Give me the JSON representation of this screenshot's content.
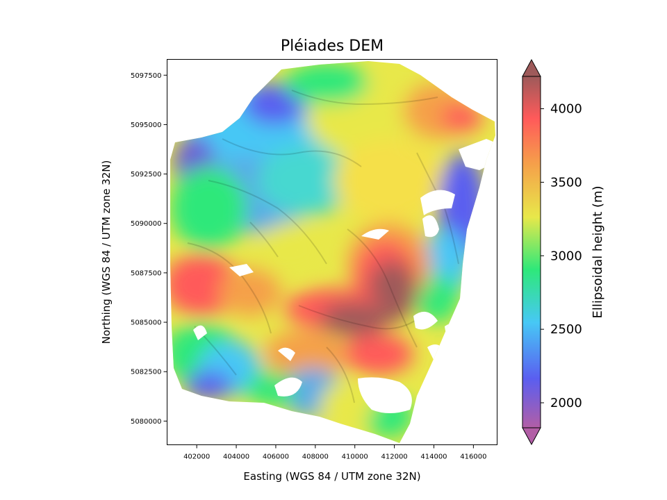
{
  "chart_data": {
    "type": "heatmap",
    "title": "Pléiades DEM",
    "xlabel": "Easting (WGS 84 / UTM zone 32N)",
    "ylabel": "Northing (WGS 84 / UTM zone 32N)",
    "colorbar_label": "Ellipsoidal height (m)",
    "xlim": [
      400500,
      417200
    ],
    "ylim": [
      5078800,
      5098300
    ],
    "xticks": [
      402000,
      404000,
      406000,
      408000,
      410000,
      412000,
      414000,
      416000
    ],
    "yticks": [
      5080000,
      5082500,
      5085000,
      5087500,
      5090000,
      5092500,
      5095000,
      5097500
    ],
    "colorbar_range": [
      1830,
      4220
    ],
    "colorbar_ticks": [
      2000,
      2500,
      3000,
      3500,
      4000
    ],
    "colorbar_extend": "both",
    "colormap": "rainbow-with-hillshade",
    "colormap_stops": [
      "#b25ea6",
      "#5a5ef0",
      "#47c8f5",
      "#2ee87a",
      "#e8e84a",
      "#f5a04a",
      "#ff5a5a",
      "#9e5a5a"
    ],
    "hillshade": true,
    "grid": false
  }
}
